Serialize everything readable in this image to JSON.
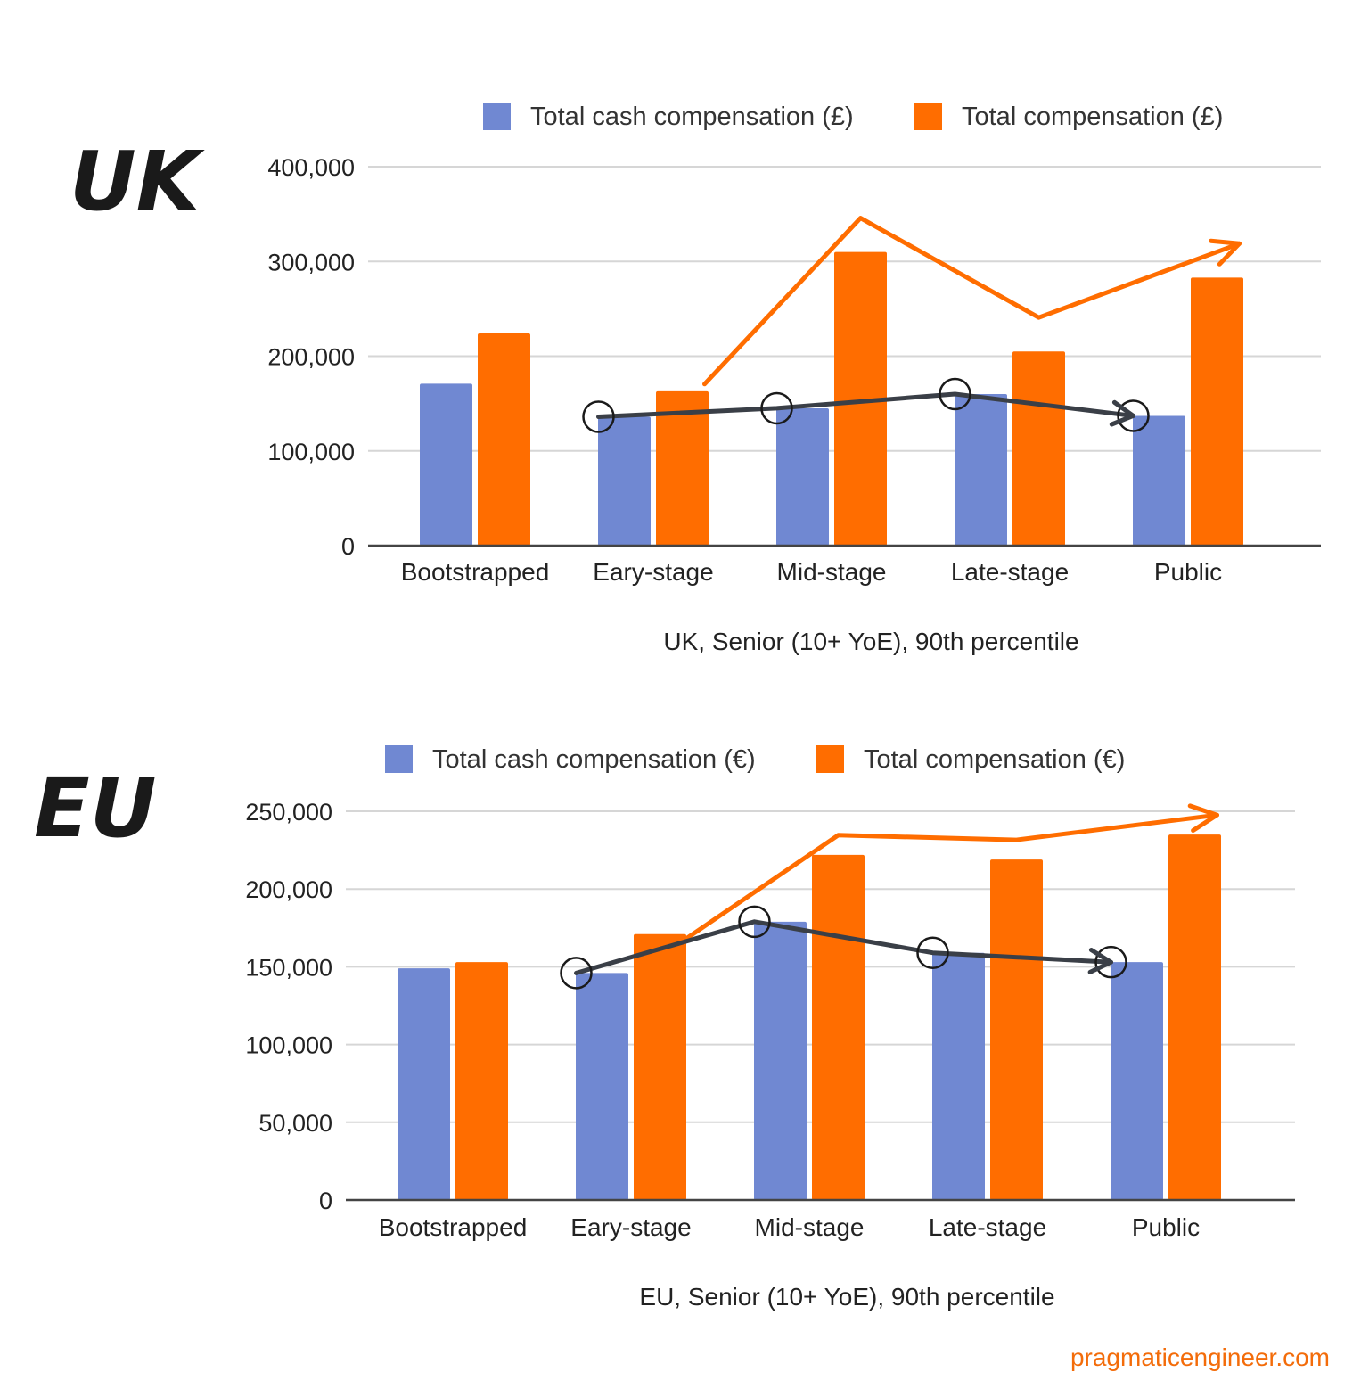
{
  "watermark": "pragmaticengineer.com",
  "colors": {
    "cash": "#7088d2",
    "total": "#ff6d00",
    "annotation_orange": "#ff6d00",
    "annotation_dark": "#3a3f47"
  },
  "chart_data": [
    {
      "type": "bar",
      "region_label": "UK",
      "categories": [
        "Bootstrapped",
        "Eary-stage",
        "Mid-stage",
        "Late-stage",
        "Public"
      ],
      "series": [
        {
          "name": "Total cash compensation (£)",
          "values": [
            171000,
            136000,
            145000,
            160000,
            137000
          ]
        },
        {
          "name": "Total compensation (£)",
          "values": [
            224000,
            163000,
            310000,
            205000,
            283000
          ]
        }
      ],
      "xlabel": "UK, Senior (10+ YoE), 90th percentile",
      "ylabel": "",
      "ylim": [
        0,
        400000
      ],
      "yticks": [
        0,
        100000,
        200000,
        300000,
        400000
      ],
      "ytick_labels": [
        "0",
        "100,000",
        "200,000",
        "300,000",
        "400,000"
      ],
      "grid": true,
      "legend": "top",
      "annotations": {
        "total_trend": "hand-drawn orange arrow rising from Eary-stage to Mid-stage, dipping at Late-stage, rising to Public",
        "cash_trend": "hand-drawn dark arrow connecting circled cash bars from Eary-stage to Public"
      }
    },
    {
      "type": "bar",
      "region_label": "EU",
      "categories": [
        "Bootstrapped",
        "Eary-stage",
        "Mid-stage",
        "Late-stage",
        "Public"
      ],
      "series": [
        {
          "name": "Total cash compensation (€)",
          "values": [
            149000,
            146000,
            179000,
            159000,
            153000
          ]
        },
        {
          "name": "Total compensation (€)",
          "values": [
            153000,
            171000,
            222000,
            219000,
            235000
          ]
        }
      ],
      "xlabel": "EU, Senior (10+ YoE), 90th percentile",
      "ylabel": "",
      "ylim": [
        0,
        250000
      ],
      "yticks": [
        0,
        50000,
        100000,
        150000,
        200000,
        250000
      ],
      "ytick_labels": [
        "0",
        "50,000",
        "100,000",
        "150,000",
        "200,000",
        "250,000"
      ],
      "grid": true,
      "legend": "top",
      "annotations": {
        "total_trend": "hand-drawn orange arrow rising from Eary-stage to Mid-stage, flat to Late-stage, rising to Public",
        "cash_trend": "hand-drawn dark arrow connecting circled cash bars from Eary-stage to Public"
      }
    }
  ]
}
